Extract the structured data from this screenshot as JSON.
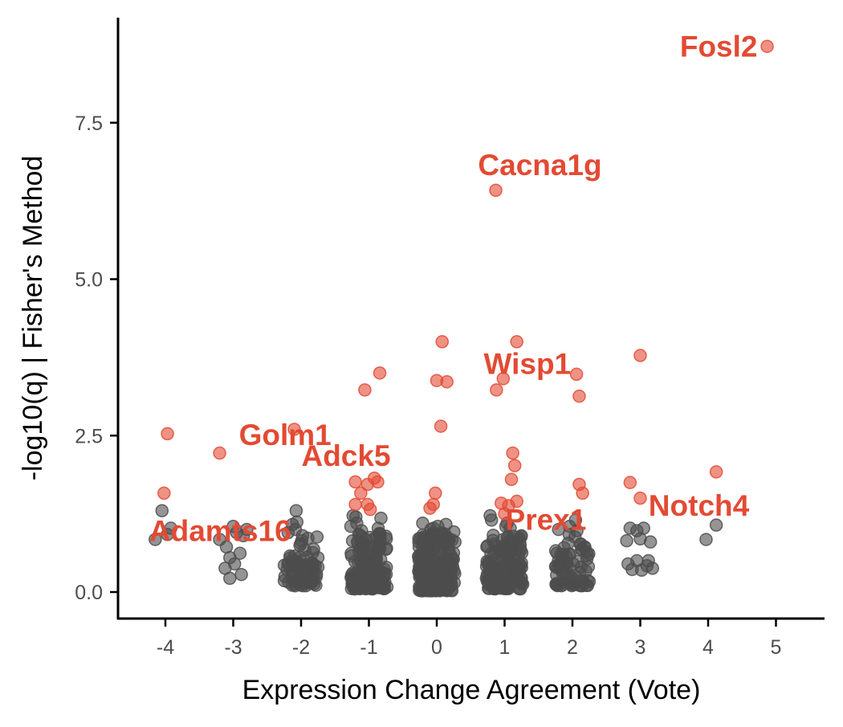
{
  "chart_data": {
    "type": "scatter",
    "title": "",
    "xlabel": "Expression Change Agreement (Vote)",
    "ylabel": "-log10(q) | Fisher's Method",
    "xlim": [
      -4.7,
      5.7
    ],
    "ylim": [
      -0.45,
      9.2
    ],
    "x_ticks": [
      -4,
      -3,
      -2,
      -1,
      0,
      1,
      2,
      3,
      4,
      5
    ],
    "y_ticks": [
      0.0,
      2.5,
      5.0,
      7.5
    ],
    "y_tick_labels": [
      "0.0",
      "2.5",
      "5.0",
      "7.5"
    ],
    "grid": false,
    "legend": "none",
    "colors": {
      "significant": "#e34a33",
      "nonsignificant": "#4d4d4d",
      "label": "#e34a33"
    },
    "significant_points": [
      {
        "x": 4.87,
        "y": 8.72
      },
      {
        "x": 0.87,
        "y": 6.42
      },
      {
        "x": 3.0,
        "y": 3.78
      },
      {
        "x": 0.08,
        "y": 4.0
      },
      {
        "x": 1.18,
        "y": 4.0
      },
      {
        "x": -0.84,
        "y": 3.5
      },
      {
        "x": -1.06,
        "y": 3.23
      },
      {
        "x": 0.0,
        "y": 3.38
      },
      {
        "x": 0.15,
        "y": 3.36
      },
      {
        "x": 0.98,
        "y": 3.41
      },
      {
        "x": 0.88,
        "y": 3.23
      },
      {
        "x": 2.06,
        "y": 3.48
      },
      {
        "x": 2.1,
        "y": 3.13
      },
      {
        "x": 0.06,
        "y": 2.65
      },
      {
        "x": -3.97,
        "y": 2.53
      },
      {
        "x": -3.2,
        "y": 2.22
      },
      {
        "x": -2.1,
        "y": 2.6
      },
      {
        "x": 1.12,
        "y": 2.22
      },
      {
        "x": 1.15,
        "y": 2.02
      },
      {
        "x": 1.1,
        "y": 1.8
      },
      {
        "x": 4.12,
        "y": 1.92
      },
      {
        "x": -4.02,
        "y": 1.58
      },
      {
        "x": -1.2,
        "y": 1.76
      },
      {
        "x": -0.92,
        "y": 1.82
      },
      {
        "x": -1.02,
        "y": 1.72
      },
      {
        "x": -0.87,
        "y": 1.76
      },
      {
        "x": -1.12,
        "y": 1.58
      },
      {
        "x": -1.2,
        "y": 1.4
      },
      {
        "x": -1.02,
        "y": 1.4
      },
      {
        "x": -0.98,
        "y": 1.32
      },
      {
        "x": -0.1,
        "y": 1.34
      },
      {
        "x": -0.05,
        "y": 1.4
      },
      {
        "x": -0.02,
        "y": 1.58
      },
      {
        "x": 0.95,
        "y": 1.42
      },
      {
        "x": 1.06,
        "y": 1.38
      },
      {
        "x": 1.18,
        "y": 1.45
      },
      {
        "x": 1.0,
        "y": 1.25
      },
      {
        "x": 2.1,
        "y": 1.72
      },
      {
        "x": 2.15,
        "y": 1.58
      },
      {
        "x": 2.85,
        "y": 1.75
      },
      {
        "x": 3.0,
        "y": 1.5
      }
    ],
    "nonsignificant_points": [
      {
        "x": -4.15,
        "y": 0.84
      },
      {
        "x": -4.05,
        "y": 1.3
      },
      {
        "x": -3.97,
        "y": 0.92
      },
      {
        "x": -3.92,
        "y": 1.02
      },
      {
        "x": -3.2,
        "y": 0.84
      },
      {
        "x": -3.1,
        "y": 0.72
      },
      {
        "x": -3.05,
        "y": 0.55
      },
      {
        "x": -2.98,
        "y": 0.45
      },
      {
        "x": -2.9,
        "y": 0.62
      },
      {
        "x": -2.88,
        "y": 0.28
      },
      {
        "x": -2.95,
        "y": 0.95
      },
      {
        "x": -3.0,
        "y": 1.05
      },
      {
        "x": -2.85,
        "y": 0.9
      },
      {
        "x": -3.12,
        "y": 0.38
      },
      {
        "x": -2.8,
        "y": 1.0
      },
      {
        "x": -3.05,
        "y": 0.22
      },
      {
        "x": 2.8,
        "y": 0.82
      },
      {
        "x": 2.85,
        "y": 1.02
      },
      {
        "x": 2.82,
        "y": 0.45
      },
      {
        "x": 2.88,
        "y": 0.36
      },
      {
        "x": 2.95,
        "y": 0.98
      },
      {
        "x": 3.0,
        "y": 0.85
      },
      {
        "x": 3.02,
        "y": 0.35
      },
      {
        "x": 3.05,
        "y": 1.02
      },
      {
        "x": 3.1,
        "y": 0.42
      },
      {
        "x": 3.12,
        "y": 0.5
      },
      {
        "x": 3.18,
        "y": 0.38
      },
      {
        "x": 3.15,
        "y": 0.8
      },
      {
        "x": 2.95,
        "y": 0.5
      },
      {
        "x": 3.97,
        "y": 0.84
      },
      {
        "x": 4.12,
        "y": 1.07
      }
    ],
    "clusters": [
      {
        "x": -2,
        "spread": 0.25,
        "ymin": 0.1,
        "ymax": 0.78,
        "count": 70,
        "tail": [
          1.3,
          1.12,
          1.08,
          1.0,
          0.95,
          0.9,
          0.88,
          0.86,
          0.82
        ]
      },
      {
        "x": -1,
        "spread": 0.27,
        "ymin": 0.05,
        "ymax": 0.95,
        "count": 150,
        "tail": [
          1.22,
          1.2,
          1.18,
          1.1,
          1.05,
          1.02,
          0.98
        ]
      },
      {
        "x": 0,
        "spread": 0.27,
        "ymin": 0.02,
        "ymax": 0.98,
        "count": 210,
        "tail": [
          1.1,
          1.05,
          1.02,
          1.0,
          1.08
        ]
      },
      {
        "x": 1,
        "spread": 0.27,
        "ymin": 0.05,
        "ymax": 0.95,
        "count": 150,
        "tail": [
          1.22,
          1.15,
          1.1,
          1.05,
          1.02
        ]
      },
      {
        "x": 2,
        "spread": 0.25,
        "ymin": 0.1,
        "ymax": 0.8,
        "count": 70,
        "tail": [
          1.15,
          1.05,
          1.0,
          0.98,
          0.92,
          0.88
        ]
      }
    ],
    "labels": [
      {
        "text": "Fosl2",
        "x": 4.87,
        "y": 8.72
      },
      {
        "text": "Cacna1g",
        "x": 0.87,
        "y": 6.42
      },
      {
        "text": "Wisp1",
        "x": 0.98,
        "y": 3.41
      },
      {
        "text": "Golm1",
        "x": -3.2,
        "y": 2.22
      },
      {
        "text": "Adck5",
        "x": -0.84,
        "y": 1.76
      },
      {
        "text": "Prex1",
        "x": 1.1,
        "y": 1.25
      },
      {
        "text": "Notch4",
        "x": 3.0,
        "y": 1.5
      },
      {
        "text": "Adamts16",
        "x": -4.02,
        "y": 1.3
      }
    ]
  }
}
